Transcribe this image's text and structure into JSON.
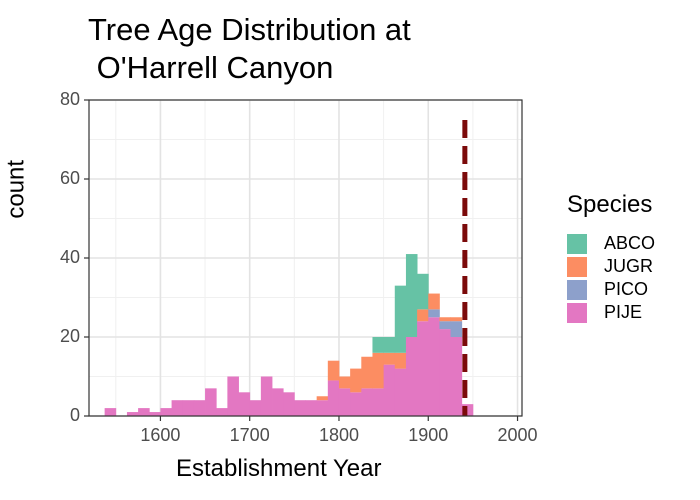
{
  "chart_data": {
    "type": "bar",
    "stacked": true,
    "title": "Tree Age Distribution at\n O'Harrell Canyon",
    "xlabel": "Establishment Year",
    "ylabel": "count",
    "xlim": [
      1520,
      2005
    ],
    "ylim": [
      0,
      80
    ],
    "xticks": [
      1600,
      1700,
      1800,
      1900,
      2000
    ],
    "yticks": [
      0,
      20,
      40,
      60,
      80
    ],
    "grid": true,
    "bin_width": 12.5,
    "bin_starts": [
      1537.5,
      1550,
      1562.5,
      1575,
      1587.5,
      1600,
      1612.5,
      1625,
      1637.5,
      1650,
      1662.5,
      1675,
      1687.5,
      1700,
      1712.5,
      1725,
      1737.5,
      1750,
      1762.5,
      1775,
      1787.5,
      1800,
      1812.5,
      1825,
      1837.5,
      1850,
      1862.5,
      1875,
      1887.5,
      1900,
      1912.5,
      1925,
      1937.5,
      1950,
      1962.5,
      1975
    ],
    "series": [
      {
        "name": "PIJE",
        "color": "#E377C2",
        "values": [
          2,
          0,
          1,
          2,
          1,
          2,
          4,
          4,
          4,
          7,
          2,
          10,
          6,
          4,
          10,
          7,
          6,
          4,
          4,
          4,
          9,
          7,
          6,
          7,
          7,
          13,
          12,
          20,
          24,
          25,
          22,
          20,
          3,
          0,
          0,
          0
        ]
      },
      {
        "name": "PICO",
        "color": "#8DA0CB",
        "values": [
          0,
          0,
          0,
          0,
          0,
          0,
          0,
          0,
          0,
          0,
          0,
          0,
          0,
          0,
          0,
          0,
          0,
          0,
          0,
          0,
          0,
          0,
          0,
          0,
          0,
          0,
          0,
          0,
          0,
          2,
          2,
          4,
          0,
          0,
          0,
          0
        ]
      },
      {
        "name": "JUGR",
        "color": "#FC8D62",
        "values": [
          0,
          0,
          0,
          0,
          0,
          0,
          0,
          0,
          0,
          0,
          0,
          0,
          0,
          0,
          0,
          0,
          0,
          0,
          0,
          1,
          5,
          3,
          6,
          8,
          9,
          3,
          4,
          0,
          3,
          4,
          1,
          1,
          0,
          0,
          0,
          0
        ]
      },
      {
        "name": "ABCO",
        "color": "#66C2A5",
        "values": [
          0,
          0,
          0,
          0,
          0,
          0,
          0,
          0,
          0,
          0,
          0,
          0,
          0,
          0,
          0,
          0,
          0,
          0,
          0,
          0,
          0,
          0,
          0,
          0,
          4,
          4,
          17,
          21,
          9,
          0,
          0,
          0,
          0,
          0,
          0,
          0
        ]
      }
    ],
    "bars_bottom_first": [
      "PIJE",
      "PICO",
      "JUGR",
      "ABCO"
    ],
    "reference_line": {
      "x": 1941,
      "color": "#7B0A0A",
      "style": "dashed"
    },
    "legend": {
      "title": "Species",
      "position": "right",
      "items": [
        {
          "label": "ABCO",
          "color": "#66C2A5"
        },
        {
          "label": "JUGR",
          "color": "#FC8D62"
        },
        {
          "label": "PICO",
          "color": "#8DA0CB"
        },
        {
          "label": "PIJE",
          "color": "#E377C2"
        }
      ]
    }
  }
}
